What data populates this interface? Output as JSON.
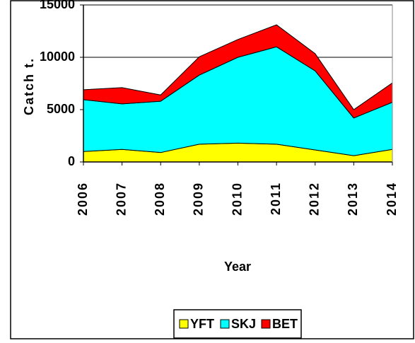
{
  "chart_data": {
    "type": "stacked-area",
    "y_label": "Catch t.",
    "x_label": "Year",
    "categories": [
      "2006",
      "2007",
      "2008",
      "2009",
      "2010",
      "2011",
      "2012",
      "2013",
      "2014"
    ],
    "series": [
      {
        "name": "YFT",
        "color": "#ffff00",
        "values": [
          1000,
          1200,
          900,
          1700,
          1800,
          1700,
          1150,
          600,
          1200
        ]
      },
      {
        "name": "SKJ",
        "color": "#00ffff",
        "values": [
          4950,
          4350,
          4900,
          6600,
          8200,
          9300,
          7550,
          3600,
          4500
        ]
      },
      {
        "name": "BET",
        "color": "#ff0000",
        "values": [
          950,
          1550,
          600,
          1750,
          1700,
          2100,
          1650,
          800,
          1850
        ]
      }
    ],
    "ylim": [
      0,
      15000
    ],
    "yticks": [
      0,
      5000,
      10000,
      15000
    ],
    "grid": true
  }
}
